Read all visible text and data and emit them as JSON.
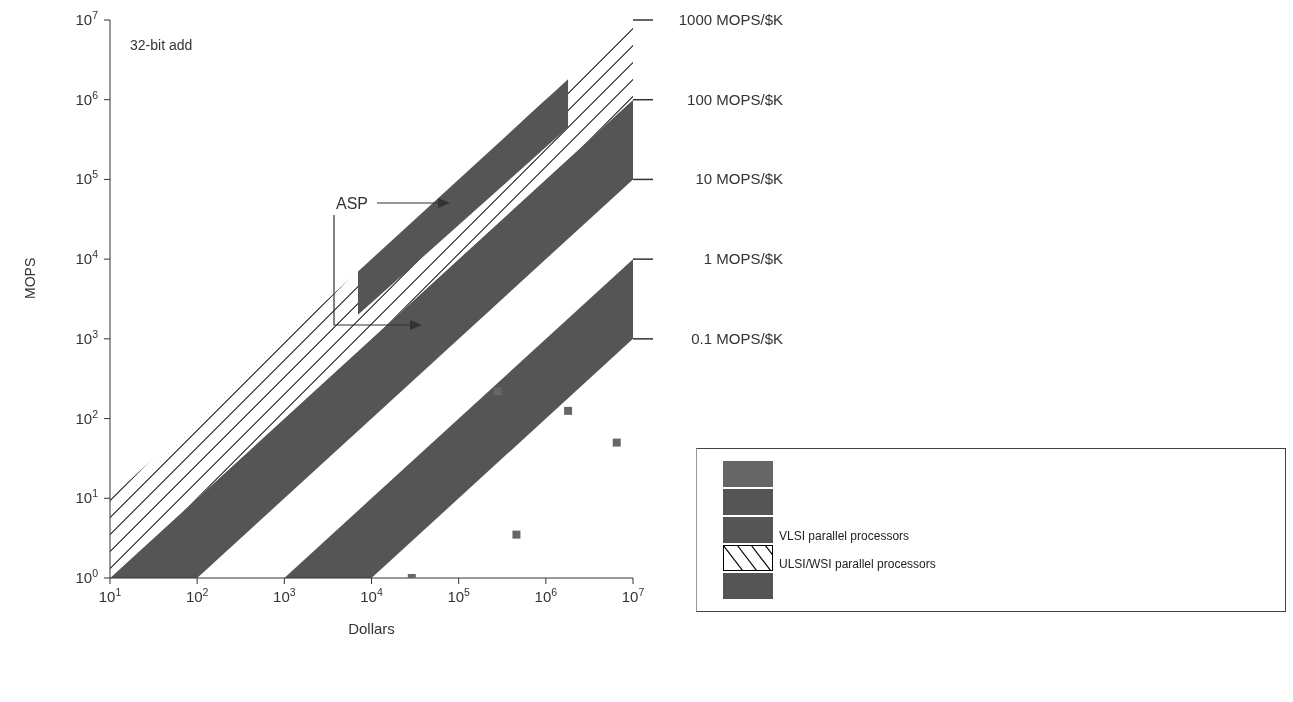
{
  "chart_data": {
    "type": "area",
    "xlabel": "Dollars",
    "ylabel": "MOPS",
    "annotations": [
      "32-bit add",
      "ASP",
      "1000  MOPS/$K",
      "100  MOPS/$K",
      "10  MOPS/$K",
      "1  MOPS/$K",
      "0.1  MOPS/$K"
    ],
    "log": "xy",
    "grid": false,
    "legend": "right",
    "xlim": [
      10,
      10000000
    ],
    "ylim": [
      1,
      10000000
    ],
    "xticks": [
      {
        "value": 10,
        "label": "10$^{1}$"
      },
      {
        "value": 100,
        "label": "10$^{2}$"
      },
      {
        "value": 1000,
        "label": "10$^{3}$"
      },
      {
        "value": 10000,
        "label": "10$^{4}$"
      },
      {
        "value": 100000,
        "label": "10$^{5}$"
      },
      {
        "value": 1000000,
        "label": "10$^{6}$"
      },
      {
        "value": 10000000,
        "label": "10$^{7}$"
      }
    ],
    "yticks": [
      {
        "value": 1,
        "label": "10$^{0}$"
      },
      {
        "value": 10,
        "label": "10$^{1}$"
      },
      {
        "value": 100,
        "label": "10$^{2}$"
      },
      {
        "value": 1000,
        "label": "10$^{3}$"
      },
      {
        "value": 10000,
        "label": "10$^{4}$"
      },
      {
        "value": 100000,
        "label": "10$^{5}$"
      },
      {
        "value": 1000000,
        "label": "10$^{6}$"
      },
      {
        "value": 10000000,
        "label": "10$^{7}$"
      }
    ],
    "series": [
      {
        "type": "scatter",
        "marker": "square",
        "color": "#666666",
        "x": [
          29000,
          280000,
          460000,
          1800000,
          6500000
        ],
        "values": [
          1,
          220,
          3.5,
          125,
          50
        ]
      },
      {
        "color": "#555555",
        "x": [
          1000,
          10000,
          10000000
        ],
        "values": [
          null,
          null,
          null
        ],
        "upper": [
          1,
          10,
          10000
        ],
        "lower": [
          1,
          1,
          1000
        ]
      },
      {
        "name": "VLSI parallel processors",
        "color": "#555555",
        "x": [
          10,
          100,
          10000000
        ],
        "values": [
          null,
          null,
          null
        ],
        "upper": [
          1,
          10,
          1000000
        ],
        "lower": [
          1,
          1,
          100000
        ]
      },
      {
        "name": "ULSI/WSI parallel processors",
        "color": "#000000",
        "x": [
          10,
          10000000
        ],
        "values": [
          null,
          null
        ],
        "upper": [
          10,
          10000000
        ],
        "lower": [
          1,
          1000000
        ]
      },
      {
        "color": "#555555",
        "x": [
          7000,
          1800000
        ],
        "values": [
          null,
          null
        ],
        "upper": [
          7000,
          1800000
        ],
        "lower": [
          2000,
          450000
        ]
      }
    ]
  }
}
